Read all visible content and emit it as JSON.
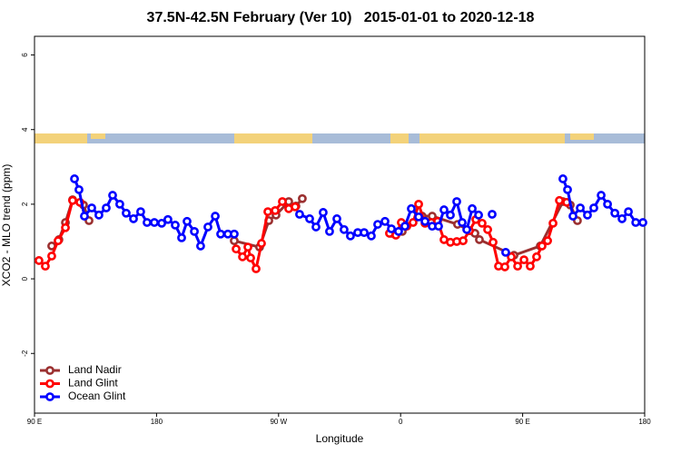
{
  "chart_data": {
    "type": "line",
    "title": "37.5N-42.5N February (Ver 10)   2015-01-01 to 2020-12-18",
    "x_label": "Longitude",
    "y_label": "XCO2 - MLO trend (ppm)",
    "xlim": [
      90,
      540
    ],
    "xticks": [
      {
        "value": 90,
        "label": "90 E"
      },
      {
        "value": 180,
        "label": "180"
      },
      {
        "value": 270,
        "label": "90 W"
      },
      {
        "value": 360,
        "label": "0"
      },
      {
        "value": 450,
        "label": "90 E"
      },
      {
        "value": 540,
        "label": "180"
      }
    ],
    "ylim": [
      -3.6,
      6.5
    ],
    "yticks": [
      -2,
      0,
      2,
      4,
      6
    ],
    "legend": "bottom-left",
    "series": [
      {
        "name": "Land Nadir",
        "color": "#9b3030",
        "x": [
          102.7,
          108,
          112.8,
          118.1,
          126.1,
          130.2,
          null,
          237.3,
          256,
          262.8,
          268.1,
          277.5,
          282.8,
          287.5,
          null,
          353.2,
          361.2,
          375.9,
          383.3,
          402,
          414.8,
          418.1,
          443.6,
          463,
          479.7,
          485.1,
          490.4
        ],
        "values": [
          0.88,
          1.05,
          1.51,
          2.12,
          1.98,
          1.56,
          null,
          1.02,
          0.85,
          1.56,
          1.71,
          2.07,
          1.95,
          2.15,
          null,
          1.22,
          1.27,
          1.68,
          1.68,
          1.46,
          1.22,
          1.05,
          0.63,
          0.88,
          2.07,
          1.98,
          1.56
        ]
      },
      {
        "name": "Land Glint",
        "color": "#ff0000",
        "x": [
          93.3,
          98,
          102.7,
          107.4,
          112.8,
          118.1,
          123.5,
          null,
          238.7,
          243.4,
          247.4,
          249.4,
          253.4,
          257.4,
          262.1,
          267.5,
          272.8,
          277.5,
          282.2,
          null,
          351.8,
          356.5,
          360.5,
          364.6,
          369.2,
          373.3,
          378,
          382.6,
          387.3,
          392,
          396.7,
          401.4,
          406.1,
          410.8,
          415.5,
          420.1,
          424.2,
          428.2,
          432.2,
          436.9,
          441.6,
          446.3,
          451,
          455.6,
          460.3,
          464.3,
          468.4,
          472.4,
          477.1,
          482.5
        ],
        "values": [
          0.49,
          0.34,
          0.61,
          1.02,
          1.37,
          2.1,
          2.05,
          null,
          0.8,
          0.59,
          0.85,
          0.56,
          0.27,
          0.95,
          1.8,
          1.83,
          2.07,
          1.88,
          1.93,
          null,
          1.22,
          1.17,
          1.51,
          1.41,
          1.51,
          2.0,
          1.49,
          1.51,
          1.54,
          1.05,
          0.98,
          1.0,
          1.02,
          1.29,
          1.59,
          1.49,
          1.32,
          0.98,
          0.34,
          0.32,
          0.59,
          0.34,
          0.51,
          0.34,
          0.59,
          0.88,
          1.02,
          1.49,
          2.1,
          2.05
        ]
      },
      {
        "name": "Ocean Glint",
        "color": "#0000ff",
        "x": [
          119.5,
          122.8,
          126.8,
          132.2,
          137.5,
          142.9,
          147.6,
          152.9,
          157.6,
          163,
          168.3,
          173,
          178.4,
          183.8,
          188.4,
          193.8,
          198.5,
          202.5,
          207.9,
          212.5,
          217.9,
          223.3,
          227.3,
          232.6,
          237.3,
          null,
          285.5,
          292.9,
          297.6,
          302.9,
          307.6,
          313,
          318.3,
          323,
          328.4,
          333.1,
          338.4,
          343.1,
          348.5,
          353.2,
          358.5,
          363.2,
          367.9,
          373.3,
          378,
          383.3,
          388,
          392,
          396.7,
          401.4,
          405.4,
          408.8,
          412.8,
          417.5,
          null,
          427.5,
          null,
          437.5,
          null,
          479.7,
          483.1,
          487.1,
          492.5,
          497.8,
          502.5,
          507.9,
          512.6,
          518,
          523.3,
          528,
          533.4,
          538.7
        ],
        "values": [
          2.68,
          2.39,
          1.68,
          1.9,
          1.71,
          1.9,
          2.24,
          2.0,
          1.76,
          1.61,
          1.8,
          1.51,
          1.51,
          1.49,
          1.59,
          1.44,
          1.1,
          1.54,
          1.27,
          0.88,
          1.39,
          1.68,
          1.2,
          1.2,
          1.2,
          null,
          1.73,
          1.61,
          1.39,
          1.78,
          1.27,
          1.61,
          1.32,
          1.15,
          1.24,
          1.24,
          1.15,
          1.46,
          1.54,
          1.34,
          1.27,
          1.41,
          1.88,
          1.66,
          1.54,
          1.41,
          1.41,
          1.85,
          1.71,
          2.07,
          1.51,
          1.32,
          1.88,
          1.71,
          null,
          1.73,
          null,
          0.71,
          null,
          2.68,
          2.39,
          1.68,
          1.9,
          1.71,
          1.9,
          2.24,
          2.0,
          1.76,
          1.61,
          1.8,
          1.51,
          1.51
        ]
      }
    ]
  }
}
